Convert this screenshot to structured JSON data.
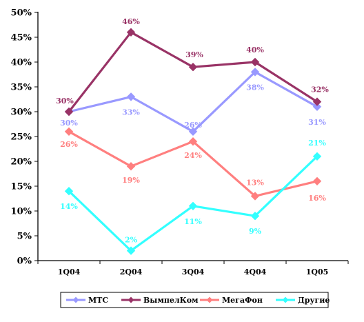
{
  "chart_data": {
    "type": "line",
    "categories": [
      "1Q04",
      "2Q04",
      "3Q04",
      "4Q04",
      "1Q05"
    ],
    "ylim": [
      0,
      50
    ],
    "yticks": [
      "0%",
      "5%",
      "10%",
      "15%",
      "20%",
      "25%",
      "30%",
      "35%",
      "40%",
      "45%",
      "50%"
    ],
    "grid": false,
    "legend_position": "bottom",
    "series": [
      {
        "name": "МТС",
        "color": "#9999ff",
        "values": [
          30,
          33,
          26,
          38,
          31
        ],
        "labels": [
          "30%",
          "33%",
          "26%",
          "38%",
          "31%"
        ]
      },
      {
        "name": "ВымпелКом",
        "color": "#993366",
        "values": [
          30,
          46,
          39,
          40,
          32
        ],
        "labels": [
          "30%",
          "46%",
          "39%",
          "40%",
          "32%"
        ]
      },
      {
        "name": "МегаФон",
        "color": "#ff7f7f",
        "values": [
          26,
          19,
          24,
          13,
          16
        ],
        "labels": [
          "26%",
          "19%",
          "24%",
          "13%",
          "16%"
        ]
      },
      {
        "name": "Другие",
        "color": "#33ffff",
        "values": [
          14,
          2,
          11,
          9,
          21
        ],
        "labels": [
          "14%",
          "2%",
          "11%",
          "9%",
          "21%"
        ]
      }
    ]
  }
}
